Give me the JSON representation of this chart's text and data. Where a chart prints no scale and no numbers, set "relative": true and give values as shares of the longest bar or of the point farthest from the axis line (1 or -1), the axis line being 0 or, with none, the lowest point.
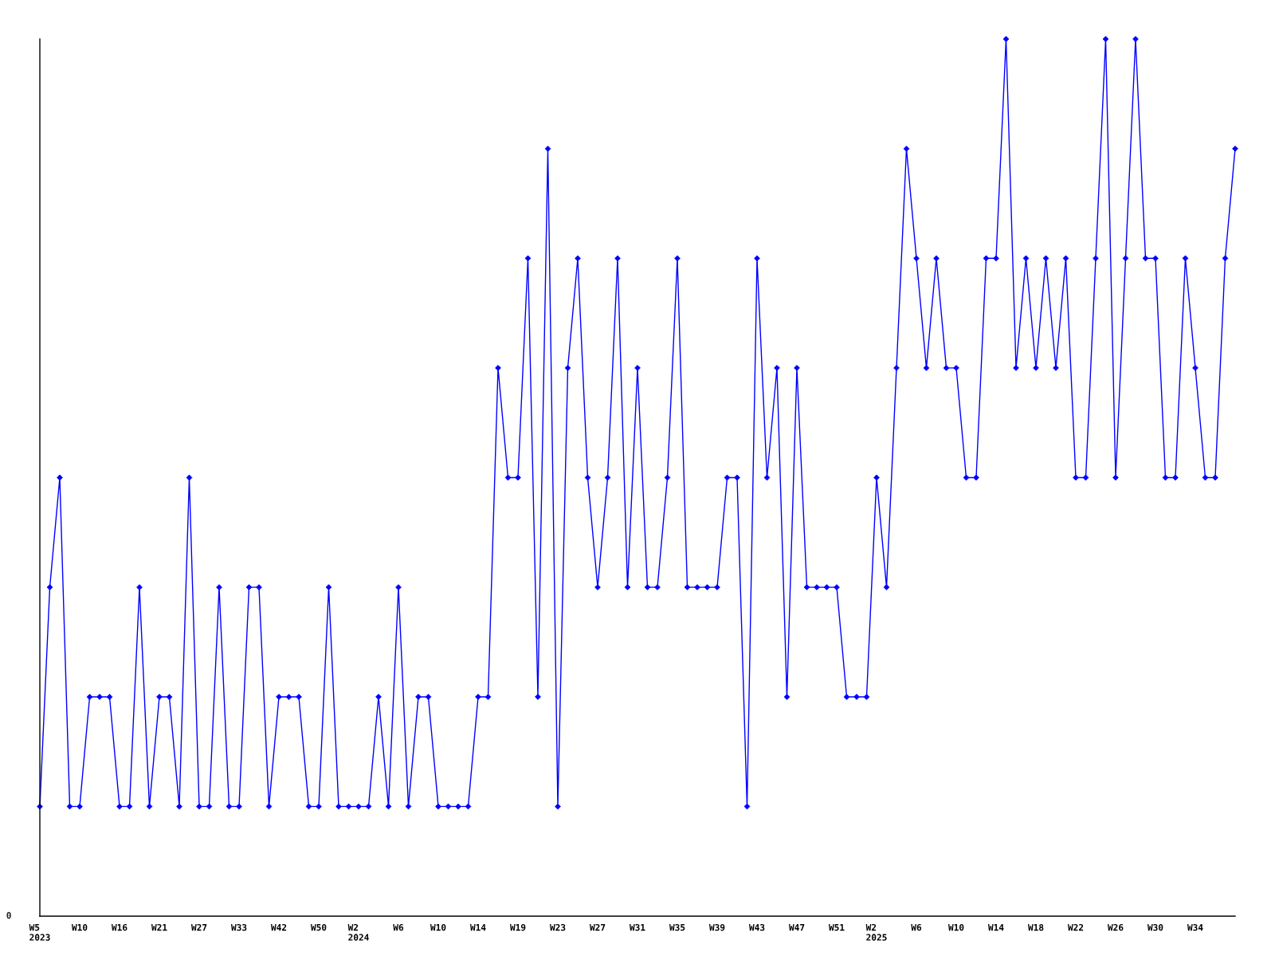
{
  "chart_data": {
    "type": "line",
    "relative": true,
    "categories": [
      "W5\n2023",
      null,
      null,
      null,
      "W10",
      null,
      null,
      null,
      "W16",
      null,
      null,
      null,
      "W21",
      null,
      null,
      null,
      "W27",
      null,
      null,
      null,
      "W33",
      null,
      null,
      null,
      "W42",
      null,
      null,
      null,
      "W50",
      null,
      null,
      null,
      "W2\n2024",
      null,
      null,
      null,
      "W6",
      null,
      null,
      null,
      "W10",
      null,
      null,
      null,
      "W14",
      null,
      null,
      null,
      "W19",
      null,
      null,
      null,
      "W23",
      null,
      null,
      null,
      "W27",
      null,
      null,
      null,
      "W31",
      null,
      null,
      null,
      "W35",
      null,
      null,
      null,
      "W39",
      null,
      null,
      null,
      "W43",
      null,
      null,
      null,
      "W47",
      null,
      null,
      null,
      "W51",
      null,
      null,
      null,
      "W2\n2025",
      null,
      null,
      null,
      "W6",
      null,
      null,
      null,
      "W10",
      null,
      null,
      null,
      "W14",
      null,
      null,
      null,
      "W18",
      null,
      null,
      null,
      "W22",
      null,
      null,
      null,
      "W26",
      null,
      null,
      null,
      "W30",
      null,
      null,
      null,
      "W34",
      null,
      null,
      null,
      null
    ],
    "series": [
      {
        "color": "#0000ff",
        "values": [
          0.125,
          0.375,
          0.5,
          0.125,
          0.125,
          0.25,
          0.25,
          0.25,
          0.125,
          0.125,
          0.375,
          0.125,
          0.25,
          0.25,
          0.125,
          0.5,
          0.125,
          0.125,
          0.375,
          0.125,
          0.125,
          0.375,
          0.375,
          0.125,
          0.25,
          0.25,
          0.25,
          0.125,
          0.125,
          0.375,
          0.125,
          0.125,
          0.125,
          0.125,
          0.25,
          0.125,
          0.375,
          0.125,
          0.25,
          0.25,
          0.125,
          0.125,
          0.125,
          0.125,
          0.25,
          0.25,
          0.625,
          0.5,
          0.5,
          0.75,
          0.25,
          0.875,
          0.125,
          0.625,
          0.75,
          0.5,
          0.375,
          0.5,
          0.75,
          0.375,
          0.625,
          0.375,
          0.375,
          0.5,
          0.75,
          0.375,
          0.375,
          0.375,
          0.375,
          0.5,
          0.5,
          0.125,
          0.75,
          0.5,
          0.625,
          0.25,
          0.625,
          0.375,
          0.375,
          0.375,
          0.375,
          0.25,
          0.25,
          0.25,
          0.5,
          0.375,
          0.625,
          0.875,
          0.75,
          0.625,
          0.75,
          0.625,
          0.625,
          0.5,
          0.5,
          0.75,
          0.75,
          1,
          0.625,
          0.75,
          0.625,
          0.75,
          0.625,
          0.75,
          0.5,
          0.5,
          0.75,
          1,
          0.5,
          0.75,
          1,
          0.75,
          0.75,
          0.5,
          0.5,
          0.75,
          0.625,
          0.5,
          0.5,
          0.75,
          0.875
        ]
      }
    ],
    "annotations": [
      "0"
    ],
    "marker": "diamond",
    "line_style": "solid",
    "grid": false
  }
}
